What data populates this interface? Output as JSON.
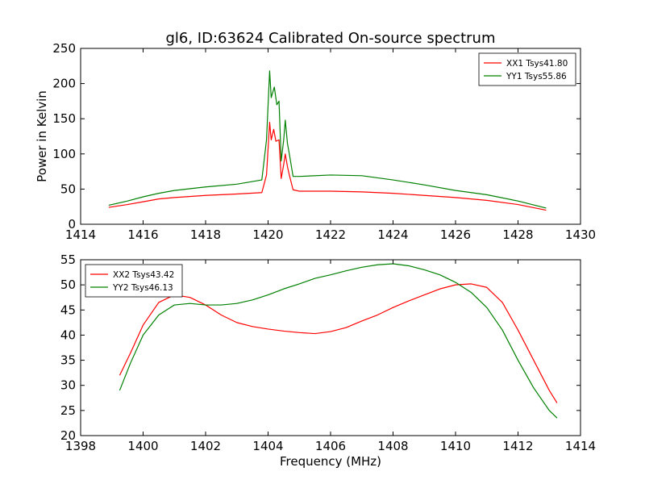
{
  "figure": {
    "title": "gl6, ID:63624 Calibrated On-source spectrum",
    "ylabel": "Power in Kelvin",
    "xlabel": "Frequency (MHz)"
  },
  "chart_data": [
    {
      "type": "line",
      "xlim": [
        1414,
        1430
      ],
      "ylim": [
        0,
        250
      ],
      "xticks": [
        "1414",
        "1416",
        "1418",
        "1420",
        "1422",
        "1424",
        "1426",
        "1428",
        "1430"
      ],
      "yticks": [
        "0",
        "50",
        "100",
        "150",
        "200",
        "250"
      ],
      "legend_position": "top-right",
      "grid": false,
      "series": [
        {
          "name": "XX1 Tsys41.80",
          "color": "#ff0000",
          "x": [
            1414.9,
            1415.5,
            1416,
            1416.5,
            1417,
            1418,
            1419,
            1419.8,
            1419.95,
            1420.05,
            1420.1,
            1420.18,
            1420.25,
            1420.35,
            1420.42,
            1420.5,
            1420.55,
            1420.62,
            1420.68,
            1420.8,
            1421,
            1422,
            1423,
            1424,
            1425,
            1426,
            1427,
            1428,
            1428.9
          ],
          "y": [
            24,
            28,
            32,
            36,
            38,
            41,
            43,
            45,
            70,
            145,
            120,
            135,
            118,
            120,
            65,
            85,
            100,
            82,
            70,
            49,
            47,
            47,
            46,
            44,
            41,
            38,
            34,
            28,
            20
          ]
        },
        {
          "name": "YY1 Tsys55.86",
          "color": "#008000",
          "x": [
            1414.9,
            1415.5,
            1416,
            1416.5,
            1417,
            1418,
            1419,
            1419.8,
            1419.95,
            1420.05,
            1420.1,
            1420.2,
            1420.28,
            1420.35,
            1420.42,
            1420.5,
            1420.55,
            1420.62,
            1420.68,
            1420.8,
            1421,
            1422,
            1423,
            1424,
            1425,
            1426,
            1427,
            1428,
            1428.9
          ],
          "y": [
            27,
            33,
            39,
            44,
            48,
            53,
            57,
            63,
            120,
            218,
            180,
            195,
            170,
            175,
            90,
            120,
            148,
            115,
            100,
            68,
            68,
            70,
            69,
            63,
            56,
            48,
            42,
            33,
            23
          ]
        }
      ]
    },
    {
      "type": "line",
      "xlim": [
        1398,
        1414
      ],
      "ylim": [
        20,
        55
      ],
      "xticks": [
        "1398",
        "1400",
        "1402",
        "1404",
        "1406",
        "1408",
        "1410",
        "1412",
        "1414"
      ],
      "yticks": [
        "20",
        "25",
        "30",
        "35",
        "40",
        "45",
        "50",
        "55"
      ],
      "legend_position": "top-left",
      "grid": false,
      "series": [
        {
          "name": "XX2 Tsys43.42",
          "color": "#ff0000",
          "x": [
            1399.25,
            1399.6,
            1400,
            1400.5,
            1401,
            1401.5,
            1402,
            1402.5,
            1403,
            1403.5,
            1404,
            1404.5,
            1405,
            1405.5,
            1406,
            1406.5,
            1407,
            1407.5,
            1408,
            1408.5,
            1409,
            1409.5,
            1410,
            1410.5,
            1411,
            1411.5,
            1412,
            1412.5,
            1413,
            1413.25
          ],
          "y": [
            32,
            36.5,
            42,
            46.5,
            48,
            47.5,
            46,
            44,
            42.5,
            41.7,
            41.2,
            40.8,
            40.5,
            40.3,
            40.7,
            41.5,
            42.8,
            44,
            45.5,
            46.8,
            48,
            49.2,
            50,
            50.2,
            49.5,
            46.5,
            41,
            35,
            29,
            26.5
          ]
        },
        {
          "name": "YY2 Tsys46.13",
          "color": "#008000",
          "x": [
            1399.25,
            1399.6,
            1400,
            1400.5,
            1401,
            1401.5,
            1402,
            1402.5,
            1403,
            1403.5,
            1404,
            1404.5,
            1405,
            1405.5,
            1406,
            1406.5,
            1407,
            1407.5,
            1408,
            1408.5,
            1409,
            1409.5,
            1410,
            1410.5,
            1411,
            1411.5,
            1412,
            1412.5,
            1413,
            1413.25
          ],
          "y": [
            29,
            34.5,
            40,
            44,
            46,
            46.3,
            46,
            46,
            46.3,
            47,
            48,
            49.2,
            50.2,
            51.3,
            52,
            52.8,
            53.5,
            54,
            54.2,
            53.8,
            53,
            52,
            50.5,
            48.5,
            45.5,
            41,
            35,
            29.5,
            25,
            23.5
          ]
        }
      ]
    }
  ]
}
